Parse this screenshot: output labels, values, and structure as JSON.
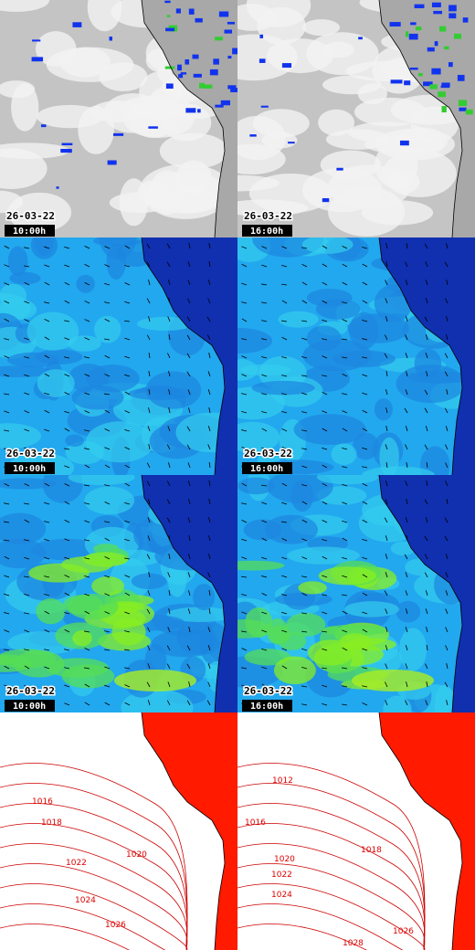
{
  "panels": [
    {
      "date": "26-03-22",
      "time": "10:00h"
    },
    {
      "date": "26-03-22",
      "time": "16:00h"
    },
    {
      "date": "26-03-22",
      "time": "10:00h"
    },
    {
      "date": "26-03-22",
      "time": "16:00h"
    },
    {
      "date": "26-03-22",
      "time": "10:00h"
    },
    {
      "date": "26-03-22",
      "time": "16:00h"
    },
    {
      "date": "",
      "time": "",
      "isobars": [
        1016,
        1018,
        1020,
        1022,
        1024,
        1026
      ]
    },
    {
      "date": "",
      "time": "",
      "isobars": [
        1012,
        1016,
        1018,
        1020,
        1022,
        1024,
        1026,
        1028
      ]
    }
  ]
}
